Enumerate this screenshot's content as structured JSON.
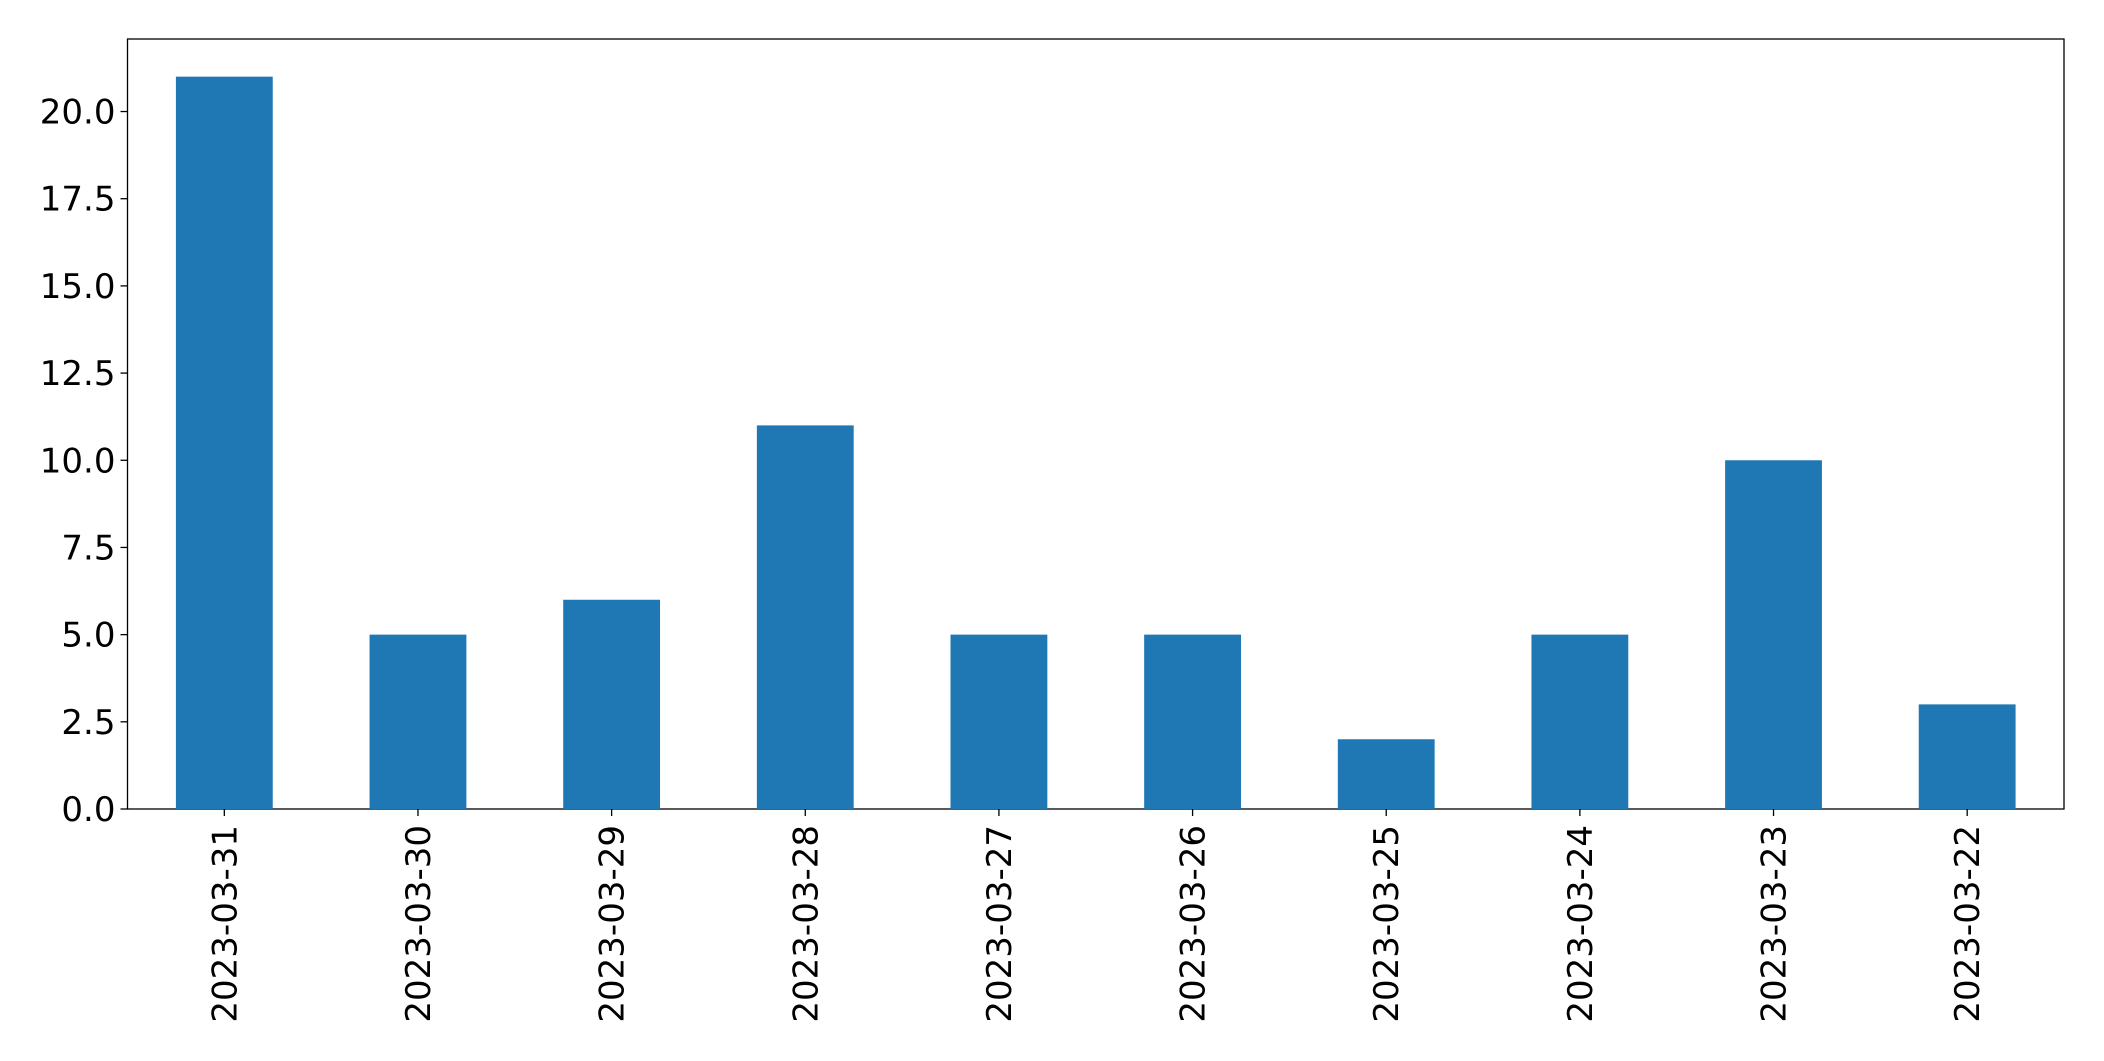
{
  "chart_data": {
    "type": "bar",
    "categories": [
      "2023-03-31",
      "2023-03-30",
      "2023-03-29",
      "2023-03-28",
      "2023-03-27",
      "2023-03-26",
      "2023-03-25",
      "2023-03-24",
      "2023-03-23",
      "2023-03-22"
    ],
    "values": [
      21,
      5,
      6,
      11,
      5,
      5,
      2,
      5,
      10,
      3
    ],
    "color": "#1f77b4",
    "ylim": [
      0,
      22.08
    ],
    "yticks": [
      {
        "value": 0,
        "label": "0.0"
      },
      2.5,
      {
        "value": 5,
        "label": "5.0"
      },
      7.5,
      {
        "value": 10,
        "label": "10.0"
      },
      12.5,
      {
        "value": 15,
        "label": "15.0"
      },
      17.5,
      {
        "value": 20,
        "label": "20.0"
      }
    ],
    "grid": false
  }
}
